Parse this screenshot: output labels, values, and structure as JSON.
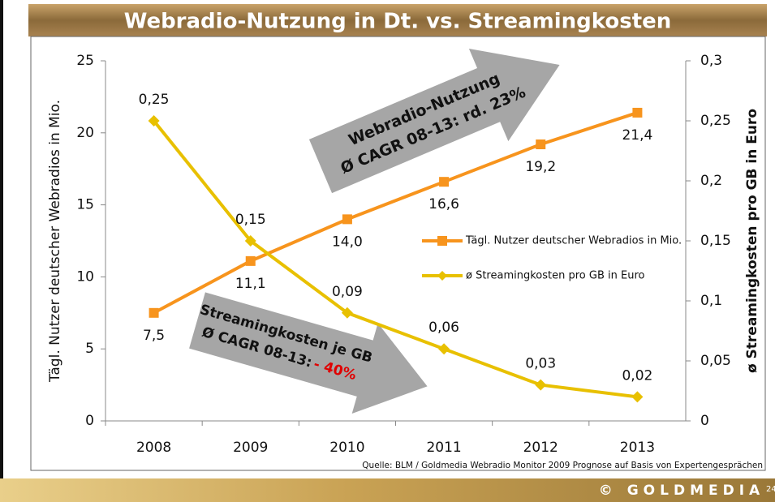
{
  "chart_data": {
    "type": "line",
    "title": "Webradio-Nutzung in Dt. vs. Streamingkosten",
    "y_label": "Tägl. Nutzer deutscher Webradios in Mio.",
    "y2_label": "ø Streamingkosten pro GB in Euro",
    "categories": [
      "2008",
      "2009",
      "2010",
      "2011",
      "2012",
      "2013"
    ],
    "series": [
      {
        "name": "Tägl. Nutzer deutscher Webradios in Mio.",
        "color": "#f7941d",
        "marker": "square",
        "values": [
          7.5,
          11.1,
          14.0,
          16.6,
          19.2,
          21.4
        ],
        "value_labels": [
          "7,5",
          "11,1",
          "14,0",
          "16,6",
          "19,2",
          "21,4"
        ]
      },
      {
        "name": "ø Streamingkosten pro GB in Euro",
        "color": "#e8c000",
        "marker": "diamond",
        "axis": "y2",
        "values": [
          0.25,
          0.15,
          0.09,
          0.06,
          0.03,
          0.02
        ],
        "value_labels": [
          "0,25",
          "0,15",
          "0,09",
          "0,06",
          "0,03",
          "0,02"
        ]
      }
    ],
    "ylim": [
      0,
      25
    ],
    "yticks": [
      0,
      5,
      10,
      15,
      20,
      25
    ],
    "y2lim": [
      0,
      0.3
    ],
    "y2ticks": [
      0,
      {
        "value": 0.05,
        "label": "0,05"
      },
      {
        "value": 0.1,
        "label": "0,1"
      },
      {
        "value": 0.15,
        "label": "0,15"
      },
      {
        "value": 0.2,
        "label": "0,2"
      },
      {
        "value": 0.25,
        "label": "0,25"
      },
      {
        "value": 0.3,
        "label": "0,3"
      }
    ],
    "annotations": {
      "growth": [
        "Webradio-Nutzung",
        "Ø CAGR 08-13: rd. 23%"
      ],
      "cost": [
        "Streamingkosten je GB",
        "Ø CAGR 08-13:",
        "- 40%"
      ]
    },
    "source": "Quelle: BLM / Goldmedia Webradio Monitor 2009 Prognose auf Basis von Expertengesprächen"
  },
  "footer": {
    "brand": "© GOLDMEDIA",
    "page": "24"
  }
}
